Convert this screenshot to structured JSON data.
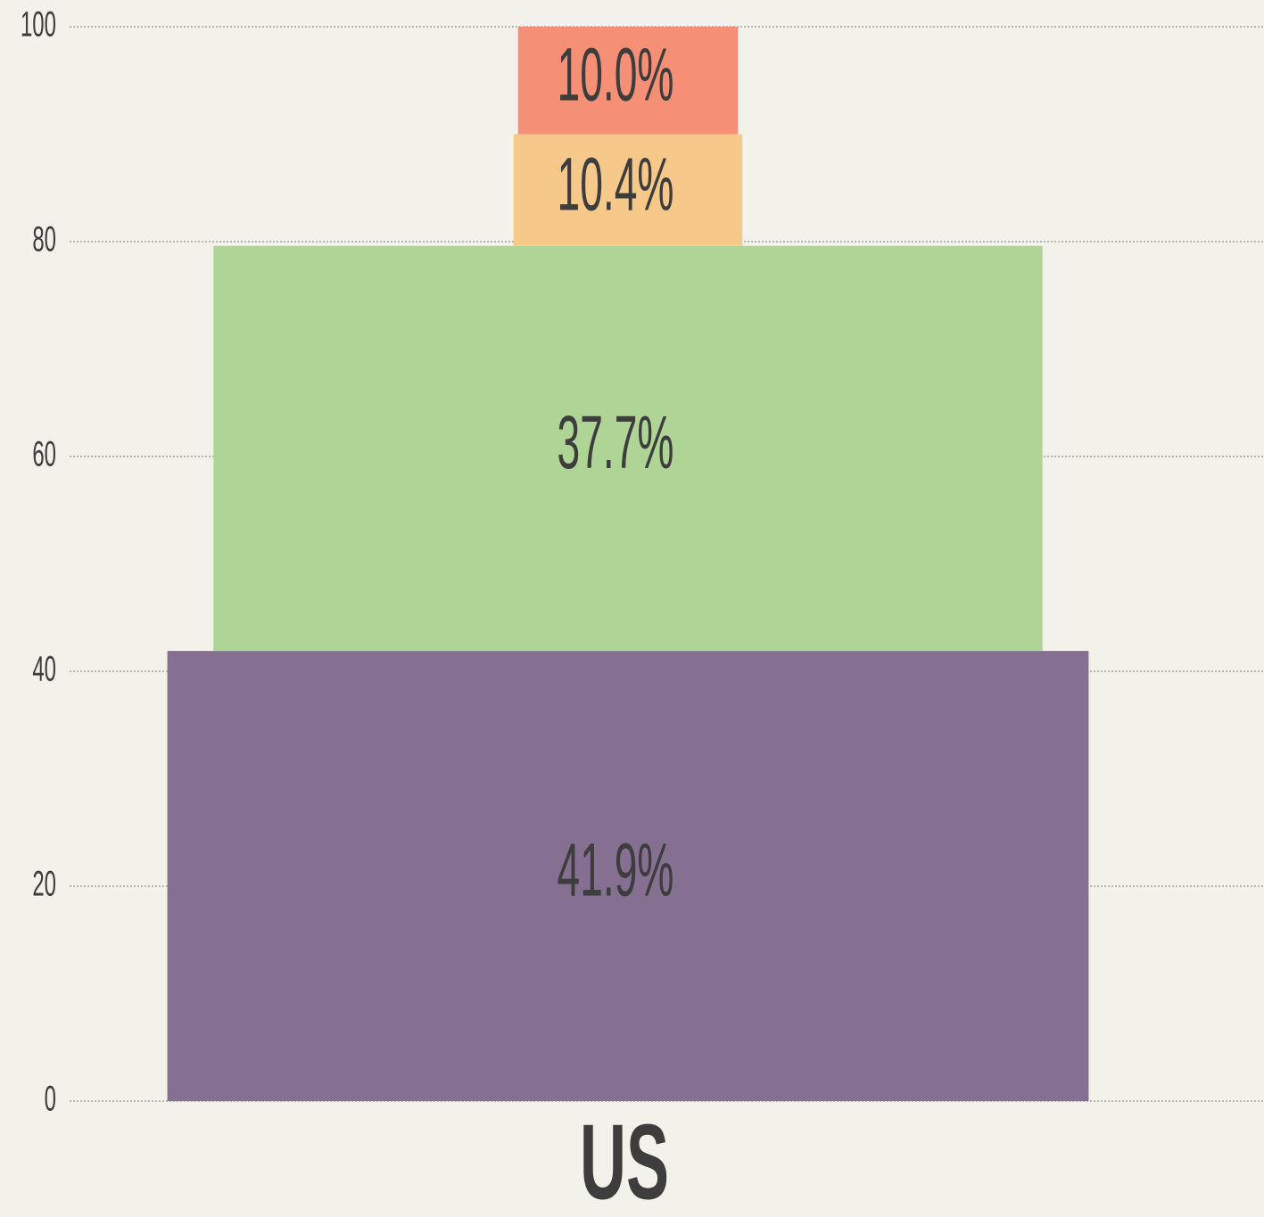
{
  "chart_data": {
    "type": "bar",
    "stacked": true,
    "categories": [
      "US"
    ],
    "series": [
      {
        "color": "#857091",
        "values": [
          41.9
        ],
        "value_labels": [
          "41.9%"
        ]
      },
      {
        "color": "#afd596",
        "values": [
          37.7
        ],
        "value_labels": [
          "37.7%"
        ]
      },
      {
        "color": "#f6c98b",
        "values": [
          10.4
        ],
        "value_labels": [
          "10.4%"
        ]
      },
      {
        "color": "#f58f76",
        "values": [
          10.0
        ],
        "value_labels": [
          "10.0%"
        ]
      }
    ],
    "ylim": [
      0,
      100
    ],
    "yticks": [
      0,
      20,
      40,
      60,
      80,
      100
    ],
    "grid": true
  }
}
